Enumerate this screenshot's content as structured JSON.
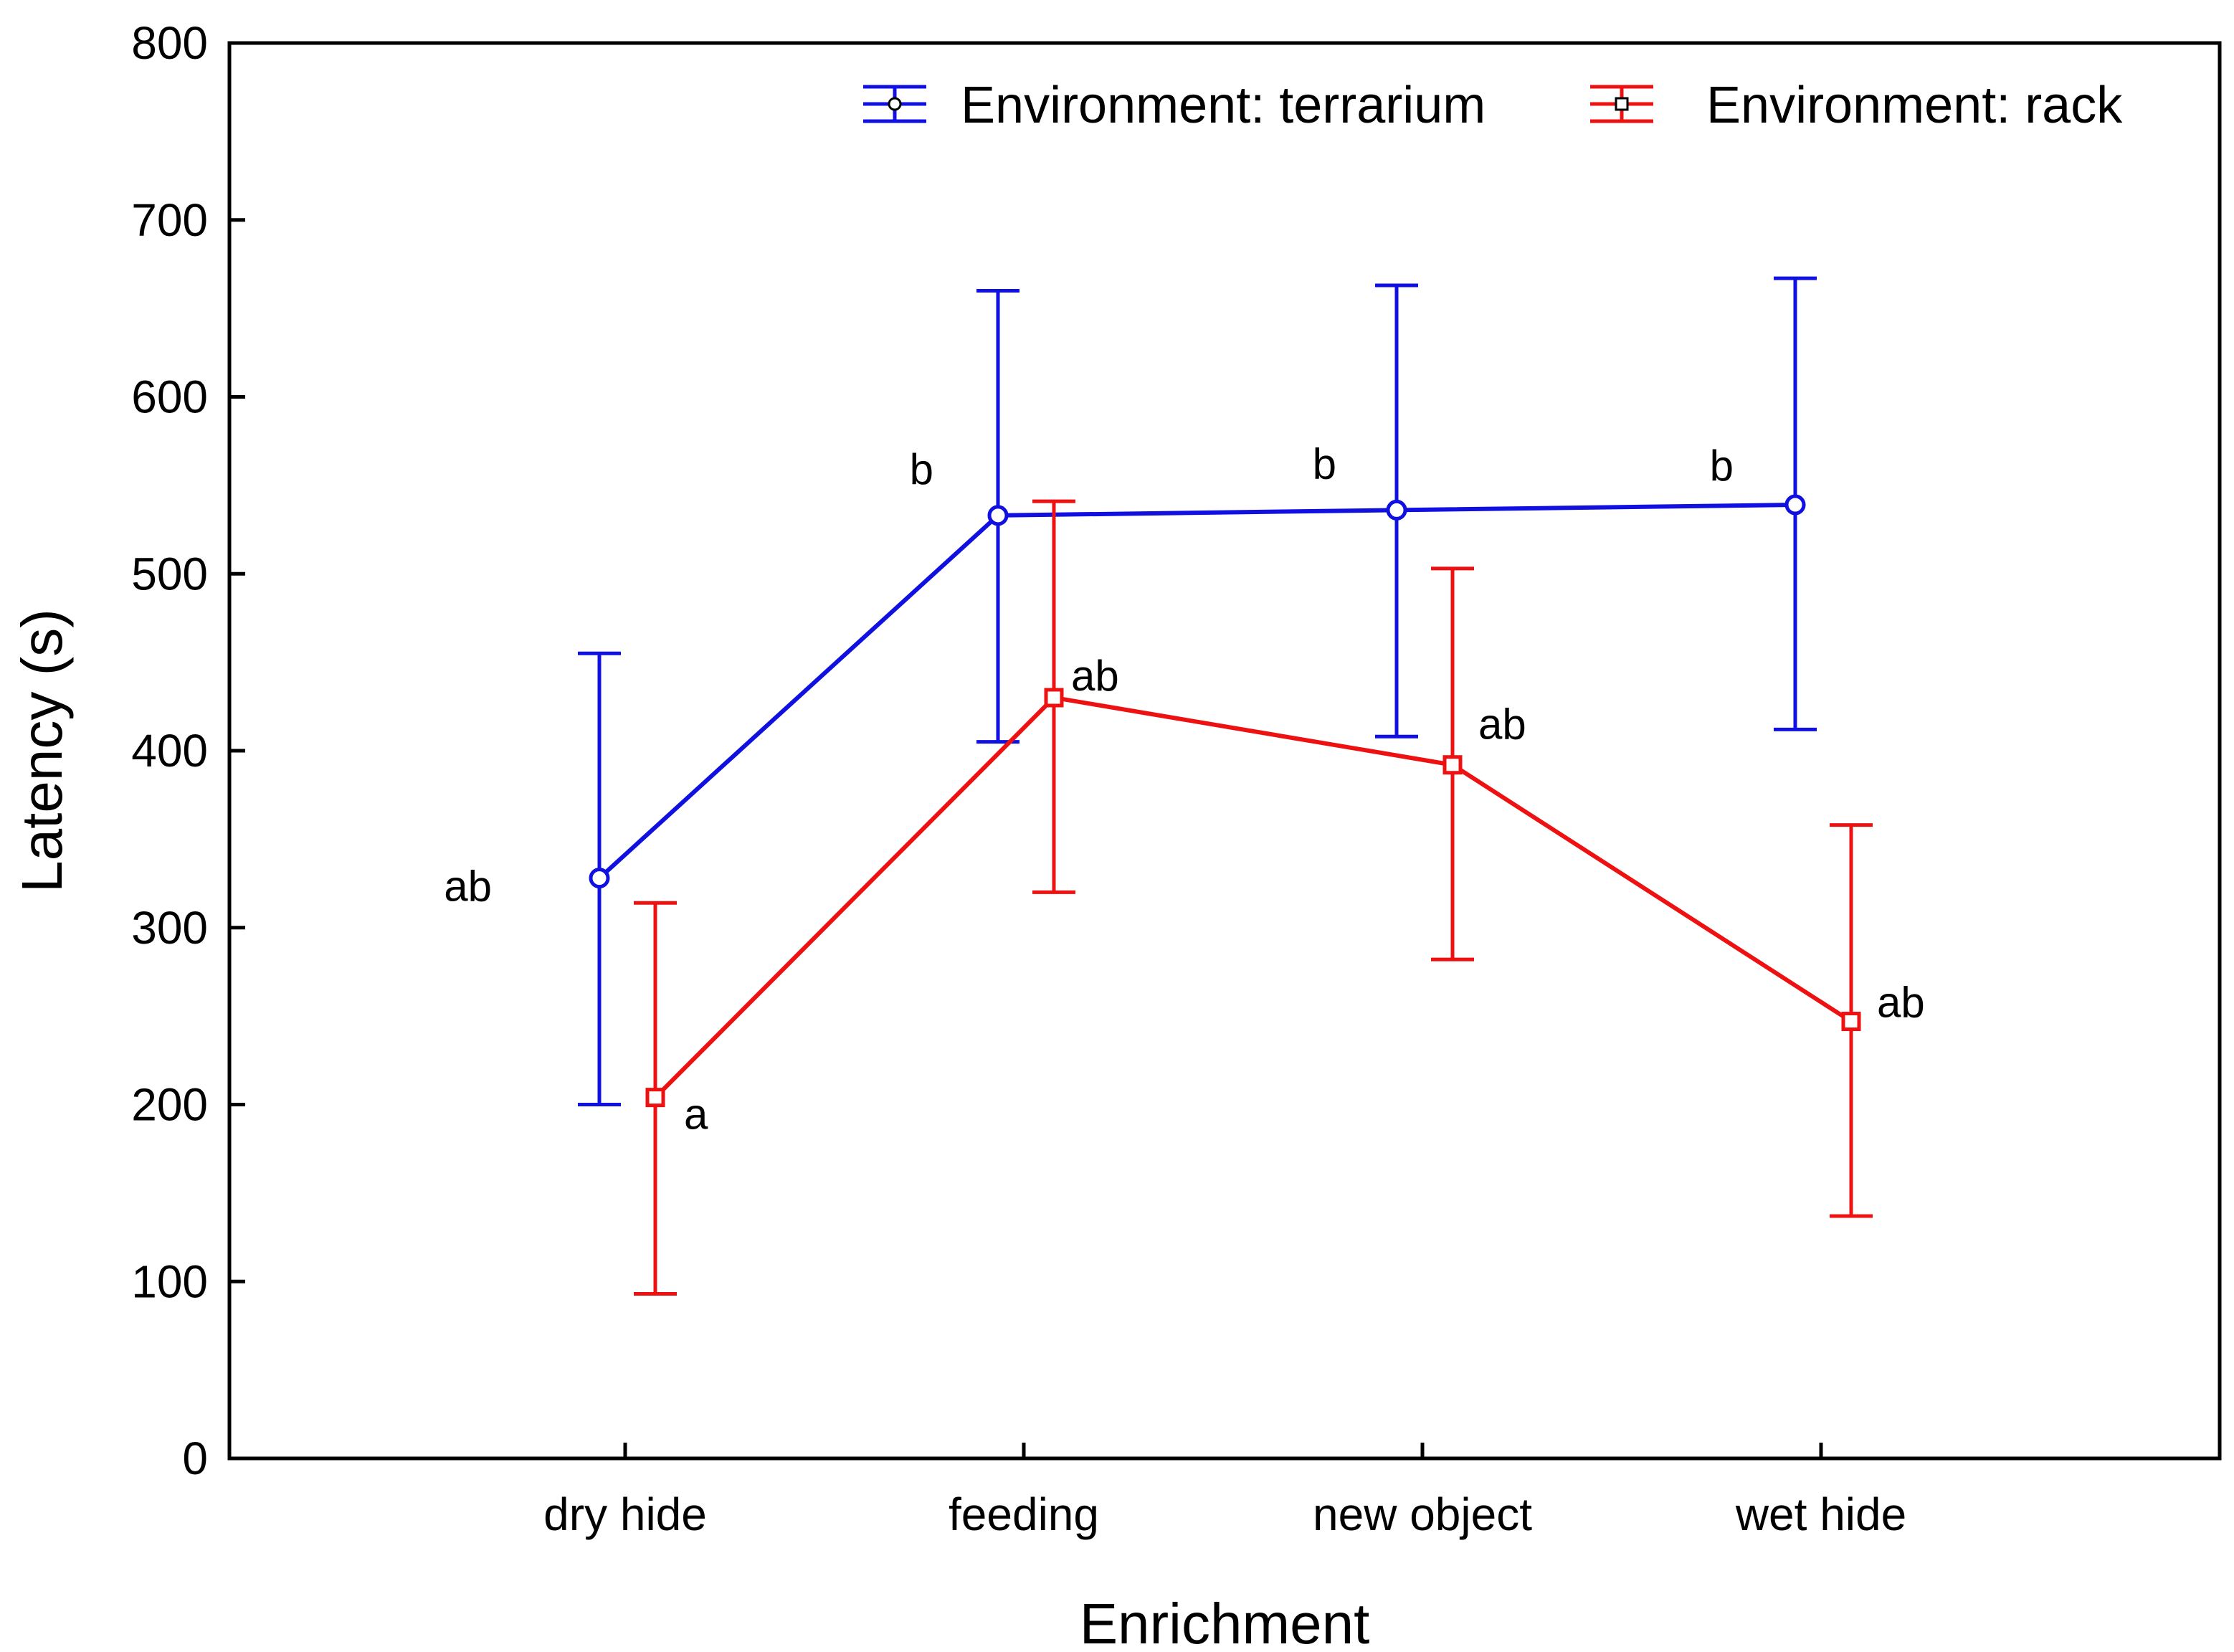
{
  "chart_data": {
    "type": "line",
    "title": "",
    "xlabel": "Enrichment",
    "ylabel": "Latency (s)",
    "ylim": [
      0,
      800
    ],
    "yticks": [
      0,
      100,
      200,
      300,
      400,
      500,
      600,
      700,
      800
    ],
    "categories": [
      "dry hide",
      "feeding",
      "new object",
      "wet hide"
    ],
    "grid": false,
    "legend_position": "top-right",
    "series": [
      {
        "name": "Environment: terrarium",
        "color": "#1010e0",
        "marker": "circle",
        "values": [
          328,
          533,
          536,
          539
        ],
        "error_low": [
          200,
          405,
          408,
          412
        ],
        "error_high": [
          455,
          660,
          663,
          667
        ],
        "annotations": [
          "ab",
          "b",
          "b",
          "b"
        ]
      },
      {
        "name": "Environment: rack",
        "color": "#ee1111",
        "marker": "square",
        "values": [
          204,
          430,
          392,
          247
        ],
        "error_low": [
          93,
          320,
          282,
          137
        ],
        "error_high": [
          314,
          541,
          503,
          358
        ],
        "annotations": [
          "a",
          "ab",
          "ab",
          "ab"
        ]
      }
    ]
  }
}
